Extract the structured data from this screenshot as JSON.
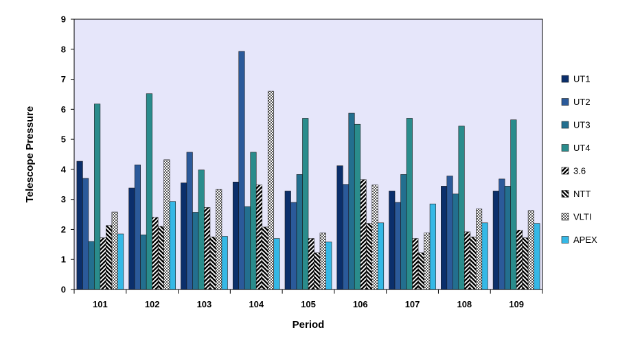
{
  "chart_data": {
    "type": "bar",
    "title": "",
    "xlabel": "Period",
    "ylabel": "Telescope Pressure",
    "ylim": [
      0,
      9
    ],
    "yticks": [
      0,
      1,
      2,
      3,
      4,
      5,
      6,
      7,
      8,
      9
    ],
    "grid": false,
    "legend_position": "right",
    "plot_background": "#e6e6fa",
    "categories": [
      "101",
      "102",
      "103",
      "104",
      "105",
      "106",
      "107",
      "108",
      "109"
    ],
    "series": [
      {
        "name": "UT1",
        "color": "#0b2f6b",
        "pattern": "solid",
        "values": [
          4.27,
          3.38,
          3.55,
          3.58,
          3.28,
          4.12,
          3.28,
          3.44,
          3.28
        ]
      },
      {
        "name": "UT2",
        "color": "#2b5a9a",
        "pattern": "solid",
        "values": [
          3.7,
          4.15,
          4.57,
          7.93,
          2.9,
          3.5,
          2.9,
          3.78,
          3.68
        ]
      },
      {
        "name": "UT3",
        "color": "#236f8f",
        "pattern": "solid",
        "values": [
          1.6,
          1.82,
          2.57,
          2.76,
          3.83,
          5.87,
          3.83,
          3.18,
          3.44
        ]
      },
      {
        "name": "UT4",
        "color": "#2a8c8c",
        "pattern": "solid",
        "values": [
          6.18,
          6.52,
          3.98,
          4.57,
          5.7,
          5.5,
          5.7,
          5.44,
          5.65
        ]
      },
      {
        "name": "3.6",
        "color": "#000000",
        "pattern": "diag-up",
        "values": [
          1.72,
          2.4,
          2.73,
          3.48,
          1.7,
          3.66,
          1.7,
          1.92,
          1.98
        ]
      },
      {
        "name": "NTT",
        "color": "#000000",
        "pattern": "diag-down",
        "values": [
          2.13,
          2.1,
          1.75,
          2.08,
          1.22,
          2.2,
          1.22,
          1.75,
          1.72
        ]
      },
      {
        "name": "VLTI",
        "color": "#999999",
        "pattern": "checker",
        "values": [
          2.58,
          4.32,
          3.33,
          6.6,
          1.88,
          3.48,
          1.88,
          2.68,
          2.63
        ]
      },
      {
        "name": "APEX",
        "color": "#35b8e6",
        "pattern": "solid",
        "values": [
          1.85,
          2.93,
          1.77,
          1.7,
          1.58,
          2.22,
          2.85,
          2.22,
          2.2
        ]
      }
    ]
  }
}
